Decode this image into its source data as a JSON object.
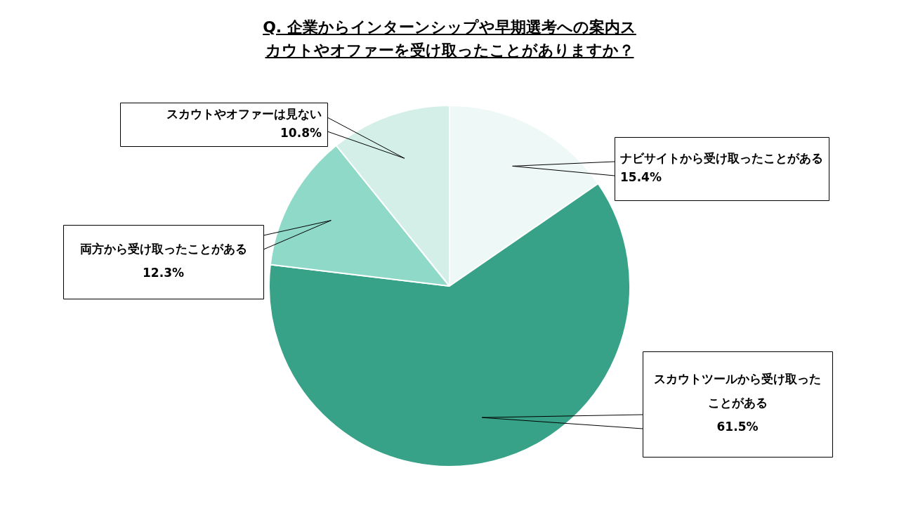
{
  "chart_data": {
    "type": "pie",
    "title": "Q. 企業からインターンシップや早期選考への案内スカウトやオファーを受け取ったことがありますか？",
    "categories": [
      "ナビサイトから受け取ったことがある",
      "スカウトツールから受け取ったことがある",
      "両方から受け取ったことがある",
      "スカウトやオファーは見ない"
    ],
    "values": [
      15.4,
      61.5,
      12.3,
      10.8
    ],
    "colors": [
      "#eef8f6",
      "#37a287",
      "#8fd9c8",
      "#d3efe7"
    ],
    "value_labels": [
      "15.4%",
      "61.5%",
      "12.3%",
      "10.8%"
    ],
    "legend": false
  }
}
